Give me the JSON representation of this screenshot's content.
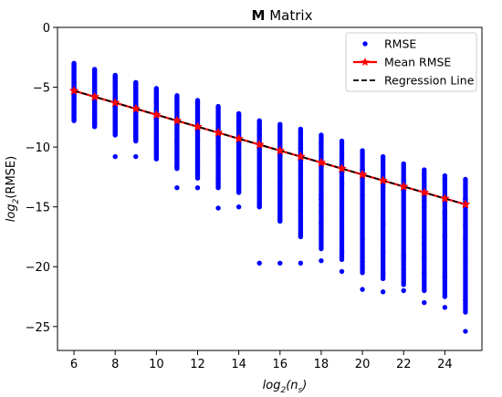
{
  "chart_data": {
    "type": "scatter",
    "title_bold": "M",
    "title_rest": " Matrix",
    "xlabel_main": "log",
    "xlabel_sub": "2",
    "xlabel_arg": "n",
    "xlabel_arg_sub": "s",
    "ylabel_main": "log",
    "ylabel_sub": "2",
    "ylabel_arg": "(RMSE)",
    "xlim": [
      5.2,
      25.8
    ],
    "ylim": [
      -27.0,
      0
    ],
    "xticks": [
      6,
      8,
      10,
      12,
      14,
      16,
      18,
      20,
      22,
      24
    ],
    "yticks": [
      0,
      -5,
      -10,
      -15,
      -20,
      -25
    ],
    "legend_position": "top-right",
    "legend": [
      {
        "label": "RMSE",
        "marker": "dot",
        "color": "#0000ff"
      },
      {
        "label": "Mean RMSE",
        "marker": "star-line",
        "color": "#ff0000"
      },
      {
        "label": "Regression Line",
        "marker": "dashed",
        "color": "#000000"
      }
    ],
    "colors": {
      "rmse": "#0000ff",
      "mean": "#ff0000",
      "regression": "#000000"
    },
    "rmse_ranges": [
      {
        "x": 6,
        "ymin": -7.8,
        "ymax": -3.0,
        "outliers": []
      },
      {
        "x": 7,
        "ymin": -8.3,
        "ymax": -3.5,
        "outliers": []
      },
      {
        "x": 8,
        "ymin": -9.0,
        "ymax": -4.0,
        "outliers": [
          -10.8
        ]
      },
      {
        "x": 9,
        "ymin": -9.5,
        "ymax": -4.6,
        "outliers": [
          -10.8
        ]
      },
      {
        "x": 10,
        "ymin": -11.0,
        "ymax": -5.1,
        "outliers": []
      },
      {
        "x": 11,
        "ymin": -11.8,
        "ymax": -5.7,
        "outliers": [
          -13.4
        ]
      },
      {
        "x": 12,
        "ymin": -12.6,
        "ymax": -6.1,
        "outliers": [
          -13.4
        ]
      },
      {
        "x": 13,
        "ymin": -13.4,
        "ymax": -6.6,
        "outliers": [
          -15.1
        ]
      },
      {
        "x": 14,
        "ymin": -13.8,
        "ymax": -7.2,
        "outliers": [
          -15.0
        ]
      },
      {
        "x": 15,
        "ymin": -15.0,
        "ymax": -7.8,
        "outliers": [
          -19.7
        ]
      },
      {
        "x": 16,
        "ymin": -16.2,
        "ymax": -8.1,
        "outliers": [
          -19.7
        ]
      },
      {
        "x": 17,
        "ymin": -17.5,
        "ymax": -8.5,
        "outliers": [
          -19.7
        ]
      },
      {
        "x": 18,
        "ymin": -18.5,
        "ymax": -9.0,
        "outliers": [
          -19.5
        ]
      },
      {
        "x": 19,
        "ymin": -19.4,
        "ymax": -9.5,
        "outliers": [
          -20.4
        ]
      },
      {
        "x": 20,
        "ymin": -20.5,
        "ymax": -10.3,
        "outliers": [
          -21.9
        ]
      },
      {
        "x": 21,
        "ymin": -21.0,
        "ymax": -10.8,
        "outliers": [
          -22.1
        ]
      },
      {
        "x": 22,
        "ymin": -21.5,
        "ymax": -11.4,
        "outliers": [
          -22.0
        ]
      },
      {
        "x": 23,
        "ymin": -22.0,
        "ymax": -11.9,
        "outliers": [
          -23.0
        ]
      },
      {
        "x": 24,
        "ymin": -22.5,
        "ymax": -12.4,
        "outliers": [
          -23.4
        ]
      },
      {
        "x": 25,
        "ymin": -23.8,
        "ymax": -12.7,
        "outliers": [
          -25.4
        ]
      }
    ],
    "mean_rmse": {
      "x": [
        6,
        7,
        8,
        9,
        10,
        11,
        12,
        13,
        14,
        15,
        16,
        17,
        18,
        19,
        20,
        21,
        22,
        23,
        24,
        25
      ],
      "y": [
        -5.3,
        -5.8,
        -6.3,
        -6.8,
        -7.3,
        -7.8,
        -8.3,
        -8.8,
        -9.3,
        -9.8,
        -10.3,
        -10.8,
        -11.3,
        -11.8,
        -12.3,
        -12.8,
        -13.3,
        -13.8,
        -14.3,
        -14.8
      ]
    },
    "regression": {
      "x": [
        6,
        25
      ],
      "y": [
        -5.3,
        -14.8
      ]
    }
  }
}
